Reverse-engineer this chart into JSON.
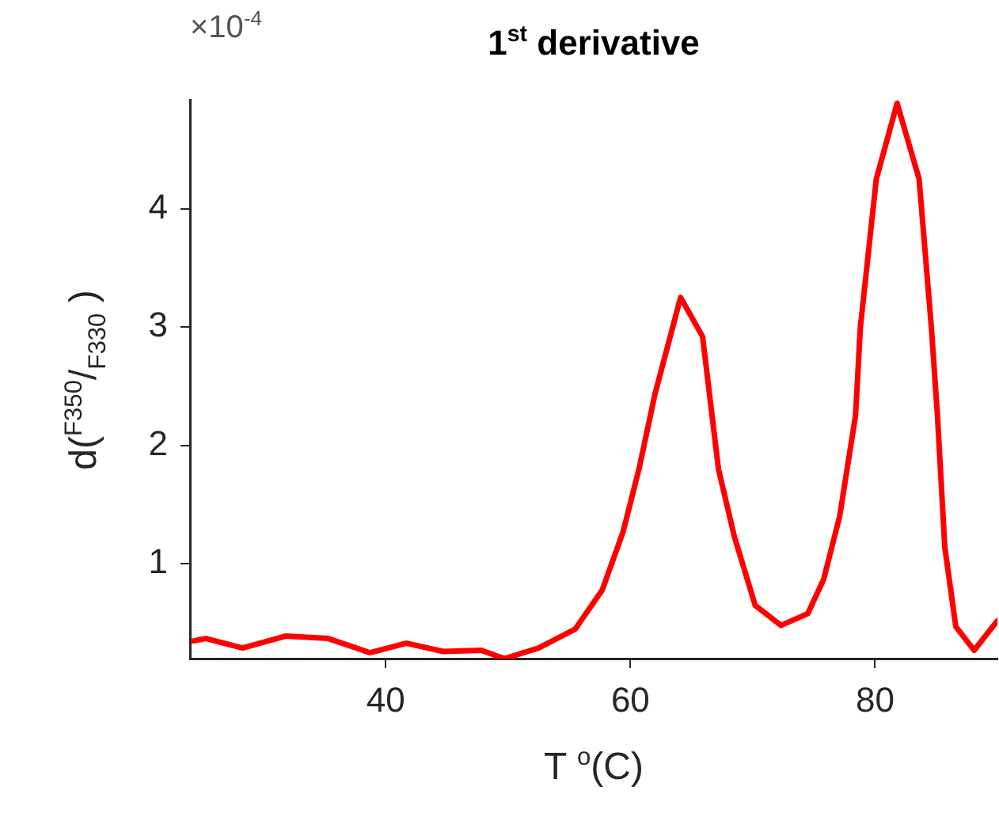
{
  "chart_data": {
    "type": "line",
    "title": "1$^{st}$ derivative",
    "xlabel": "T $^{o}$(C)",
    "ylabel": "d($^{F350}$/$_{F330}$ )",
    "annotations": [
      "×10$^{-4}$"
    ],
    "x": [
      24.3,
      25.3,
      28.3,
      31.8,
      35.3,
      38.7,
      41.7,
      44.7,
      47.8,
      49.7,
      52.5,
      55.5,
      57.7,
      59.4,
      60.7,
      62.0,
      64.1,
      65.9,
      67.2,
      68.5,
      70.2,
      72.3,
      74.5,
      75.8,
      77.1,
      78.4,
      78.8,
      80.1,
      81.8,
      83.6,
      84.6,
      85.1,
      85.7,
      86.6,
      88.1,
      90
    ],
    "series": [
      {
        "color": "#ff0000",
        "values": [
          0.35,
          0.37,
          0.29,
          0.39,
          0.37,
          0.25,
          0.33,
          0.26,
          0.27,
          0.2,
          0.29,
          0.45,
          0.78,
          1.27,
          1.8,
          2.43,
          3.25,
          2.92,
          1.8,
          1.23,
          0.65,
          0.48,
          0.58,
          0.87,
          1.4,
          2.25,
          3.0,
          4.25,
          4.89,
          4.25,
          3.0,
          2.25,
          1.14,
          0.47,
          0.27,
          0.52
        ]
      }
    ],
    "xlim": [
      24,
      90
    ],
    "xticks": [
      40,
      60,
      80
    ],
    "ylim": [
      0.2,
      4.92
    ],
    "yticks": [
      1,
      2,
      3,
      4
    ],
    "grid": false,
    "legend": false,
    "marker": "none",
    "line_style": "solid"
  }
}
